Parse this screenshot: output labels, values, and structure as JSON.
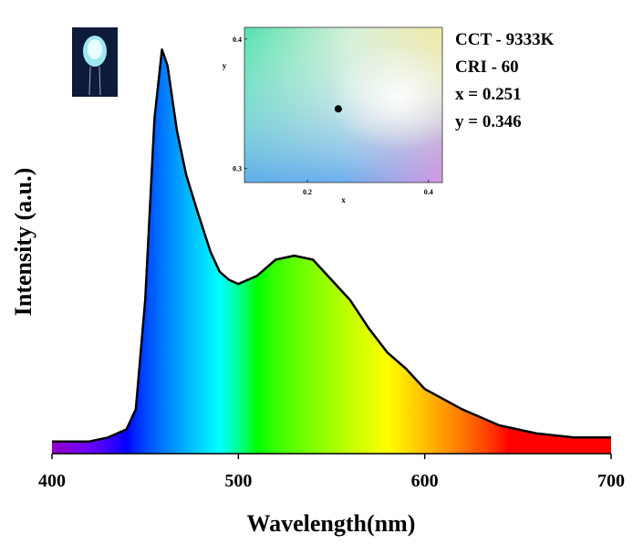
{
  "chart_data": {
    "type": "spectrum",
    "xlabel": "Wavelength(nm)",
    "ylabel": "Intensity (a.u.)",
    "x": [
      400,
      420,
      430,
      440,
      445,
      450,
      455,
      459,
      462,
      467,
      472,
      478,
      485,
      490,
      495,
      500,
      510,
      520,
      530,
      540,
      550,
      560,
      570,
      580,
      590,
      600,
      620,
      640,
      660,
      680,
      700
    ],
    "values": [
      0.03,
      0.03,
      0.04,
      0.06,
      0.11,
      0.38,
      0.83,
      1.0,
      0.96,
      0.8,
      0.69,
      0.6,
      0.5,
      0.45,
      0.43,
      0.42,
      0.44,
      0.48,
      0.49,
      0.48,
      0.43,
      0.38,
      0.31,
      0.25,
      0.21,
      0.16,
      0.11,
      0.07,
      0.05,
      0.04,
      0.04
    ],
    "color": "#000000",
    "xlim": [
      400,
      700
    ],
    "xticks": [
      400,
      500,
      600,
      700
    ],
    "ylim": [
      0,
      1.1
    ],
    "annotations": [
      "CCT - 9333K",
      "CRI - 60",
      "x = 0.251",
      "y = 0.346"
    ],
    "inset": {
      "type": "scatter",
      "xlabel": "x",
      "ylabel": "y",
      "xlim": [
        0.096,
        0.423
      ],
      "ylim": [
        0.289,
        0.409
      ],
      "xticks": [
        0.2,
        0.4
      ],
      "yticks": [
        0.3,
        0.4
      ],
      "x": [
        0.251
      ],
      "values": [
        0.346
      ],
      "color": "#000000"
    }
  }
}
